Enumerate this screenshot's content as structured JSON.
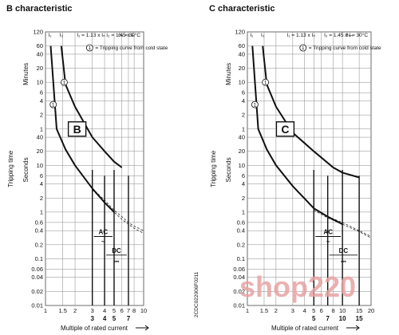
{
  "watermark": "shop220",
  "document_code": "2CDC022006F0211",
  "chart_data": [
    {
      "type": "line",
      "title": "B characteristic",
      "xlabel": "Multiple of rated current",
      "ylabel": "Tripping time",
      "ylabel_minutes": "Minutes",
      "ylabel_seconds": "Seconds",
      "xscale": "log",
      "yscale": "log",
      "xlim": [
        1,
        10
      ],
      "ylim_seconds": [
        0.01,
        7200
      ],
      "x_ticks": [
        "1",
        "1.5",
        "2",
        "3",
        "4",
        "5",
        "6",
        "7",
        "8",
        "10"
      ],
      "x_bold_ticks": [
        "3",
        "5",
        "4",
        "7"
      ],
      "y_ticks_minutes": [
        "120",
        "60",
        "40",
        "20",
        "10",
        "6",
        "4",
        "2",
        "1"
      ],
      "y_ticks_seconds": [
        "40",
        "20",
        "10",
        "6",
        "4",
        "2",
        "1",
        "0.6",
        "0.4",
        "0.2",
        "0.1",
        "0.06",
        "0.04",
        "0.02",
        "0.01"
      ],
      "header_i1": "I₁",
      "header_i2": "I₂",
      "formula_i1": "I₁ = 1.13 x Iₙ",
      "formula_i2": "I₂ = 1.45 x Iₙ",
      "temperature": "ϑₙ = 30°C",
      "legend_marker": "1",
      "legend_text": "= Tripping curve from cold state",
      "badge": "B",
      "ac_label": "AC",
      "ac_symbol": "~",
      "dc_label": "DC",
      "dc_symbol": "⎓",
      "series": [
        {
          "name": "thermal-upper",
          "x": [
            1.45,
            1.6,
            2,
            3,
            4,
            5,
            6
          ],
          "y": [
            3600,
            540,
            180,
            40,
            20,
            12,
            9
          ]
        },
        {
          "name": "thermal-lower",
          "x": [
            1.13,
            1.3,
            1.6,
            2,
            3,
            4,
            5
          ],
          "y": [
            3600,
            60,
            22,
            10,
            3.2,
            1.6,
            1.0
          ]
        },
        {
          "name": "cold-state-upper",
          "x": [
            3,
            4,
            5,
            6,
            7,
            8,
            10
          ],
          "y": [
            3.2,
            1.8,
            1.1,
            0.8,
            0.6,
            0.5,
            0.4
          ]
        },
        {
          "name": "cold-state-lower",
          "x": [
            3,
            4,
            5,
            6,
            7,
            8,
            10
          ],
          "y": [
            3.0,
            1.6,
            1.0,
            0.7,
            0.55,
            0.45,
            0.35
          ]
        }
      ],
      "magnetic_trip": {
        "ac": [
          3,
          5
        ],
        "dc": [
          4,
          7
        ]
      }
    },
    {
      "type": "line",
      "title": "C characteristic",
      "xlabel": "Multiple of rated current",
      "ylabel": "Tripping time",
      "ylabel_minutes": "Minutes",
      "ylabel_seconds": "Seconds",
      "xscale": "log",
      "yscale": "log",
      "xlim": [
        1,
        20
      ],
      "ylim_seconds": [
        0.01,
        7200
      ],
      "x_ticks": [
        "1",
        "1.5",
        "2",
        "3",
        "4",
        "5",
        "6",
        "8",
        "10",
        "15",
        "20"
      ],
      "x_bold_ticks": [
        "5",
        "10",
        "7",
        "15"
      ],
      "y_ticks_minutes": [
        "120",
        "60",
        "40",
        "20",
        "10",
        "6",
        "4",
        "2",
        "1"
      ],
      "y_ticks_seconds": [
        "40",
        "20",
        "10",
        "6",
        "4",
        "2",
        "1",
        "0.6",
        "0.4",
        "0.2",
        "0.1",
        "0.06",
        "0.04",
        "0.02",
        "0.01"
      ],
      "header_i1": "I₁",
      "header_i2": "I₂",
      "formula_i1": "I₁ = 1.13 x Iₙ",
      "formula_i2": "I₂ = 1.45 x Iₙ",
      "temperature": "ϑₙ = 30°C",
      "legend_marker": "1",
      "legend_text": "= Tripping curve from cold state",
      "badge": "C",
      "ac_label": "AC",
      "ac_symbol": "~",
      "dc_label": "DC",
      "dc_symbol": "⎓",
      "series": [
        {
          "name": "thermal-upper",
          "x": [
            1.45,
            1.6,
            2,
            3,
            5,
            8,
            10,
            15
          ],
          "y": [
            3600,
            540,
            180,
            50,
            20,
            9,
            7,
            5.5
          ]
        },
        {
          "name": "thermal-lower",
          "x": [
            1.13,
            1.3,
            1.6,
            2,
            3,
            5,
            7,
            10
          ],
          "y": [
            3600,
            60,
            22,
            10,
            3.6,
            1.2,
            0.8,
            0.55
          ]
        },
        {
          "name": "cold-state-upper",
          "x": [
            5,
            7,
            10,
            15,
            20
          ],
          "y": [
            1.2,
            0.8,
            0.6,
            0.4,
            0.3
          ]
        },
        {
          "name": "cold-state-lower",
          "x": [
            5,
            7,
            10,
            15,
            20
          ],
          "y": [
            1.1,
            0.75,
            0.55,
            0.38,
            0.28
          ]
        }
      ],
      "magnetic_trip": {
        "ac": [
          5,
          10
        ],
        "dc": [
          7,
          15
        ]
      }
    }
  ]
}
